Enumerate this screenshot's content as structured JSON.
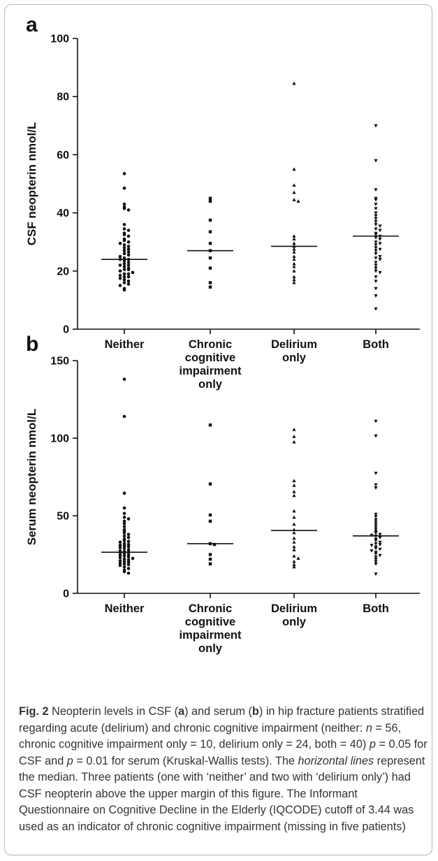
{
  "chart_data": [
    {
      "type": "scatter",
      "panel_label": "a",
      "ylabel": "CSF neopterin nmol/L",
      "ylim": [
        0,
        100
      ],
      "yticks": [
        "0",
        "20",
        "40",
        "60",
        "80",
        "100"
      ],
      "categories": [
        [
          "Neither"
        ],
        [
          "Chronic",
          "cognitive",
          "impairment",
          "only"
        ],
        [
          "Delirium",
          "only"
        ],
        [
          "Both"
        ]
      ],
      "groups": [
        {
          "marker": "circle",
          "median": 24,
          "values": [
            53.5,
            48.5,
            43,
            42,
            41.5,
            41,
            36,
            34.5,
            34,
            33,
            32.5,
            32,
            31,
            30.5,
            30,
            29.5,
            29,
            28.5,
            28,
            27.5,
            27,
            26.5,
            26,
            25.5,
            25,
            24.5,
            24,
            24,
            23.5,
            23,
            22.5,
            22,
            22,
            21.5,
            21,
            20.5,
            20.5,
            20,
            19.5,
            19,
            19,
            18.5,
            18,
            18,
            17.5,
            17,
            16.5,
            16,
            15.5,
            15,
            14,
            13.5
          ]
        },
        {
          "marker": "square",
          "median": 27,
          "values": [
            45,
            44,
            37.5,
            33.5,
            29.5,
            27,
            24.5,
            21,
            16,
            14.5
          ]
        },
        {
          "marker": "triangle-up",
          "median": 28.5,
          "values": [
            84.5,
            55,
            49.5,
            47,
            44.5,
            44,
            32,
            31,
            29.5,
            28.5,
            27.5,
            26.5,
            25,
            24,
            22.5,
            21.5,
            20,
            18,
            17,
            16
          ]
        },
        {
          "marker": "triangle-down",
          "median": 32,
          "values": [
            70,
            58,
            48,
            45,
            44.5,
            43,
            41.5,
            40,
            39,
            38,
            37,
            36,
            35.5,
            34.5,
            34,
            33,
            32.5,
            32,
            31.5,
            31,
            30,
            29.5,
            29,
            28,
            27.5,
            27,
            26,
            25,
            24.5,
            24,
            23,
            22,
            21,
            20,
            19.5,
            18,
            16.5,
            14,
            11.5,
            7
          ]
        }
      ]
    },
    {
      "type": "scatter",
      "panel_label": "b",
      "ylabel": "Serum neopterin nmol/L",
      "ylim": [
        0,
        150
      ],
      "yticks": [
        "0",
        "50",
        "100",
        "150"
      ],
      "categories": [
        [
          "Neither"
        ],
        [
          "Chronic",
          "cognitive",
          "impairment",
          "only"
        ],
        [
          "Delirium",
          "only"
        ],
        [
          "Both"
        ]
      ],
      "groups": [
        {
          "marker": "circle",
          "median": 26.5,
          "values": [
            138,
            114,
            64.5,
            55,
            51.5,
            49,
            48,
            46.5,
            45,
            43,
            41,
            40,
            39,
            38,
            37,
            36,
            35,
            34,
            33.5,
            33,
            32,
            31.5,
            31,
            30.5,
            30,
            29.5,
            29,
            28,
            27.5,
            27,
            26.5,
            26,
            25.5,
            25,
            24.5,
            24,
            23.5,
            23,
            22.5,
            22,
            21.5,
            21,
            20.5,
            20,
            19.5,
            19,
            18.5,
            18,
            17,
            16,
            15,
            14,
            13
          ]
        },
        {
          "marker": "square",
          "median": 32,
          "values": [
            108.5,
            70.5,
            50.5,
            46.5,
            32,
            31.5,
            25,
            22,
            19
          ]
        },
        {
          "marker": "triangle-up",
          "median": 40.5,
          "values": [
            105.5,
            101,
            97.5,
            72.5,
            69.5,
            65.5,
            63,
            53,
            49,
            44.5,
            41,
            39,
            35.5,
            33,
            30,
            28,
            24,
            22.5,
            20.5,
            18.5,
            17
          ]
        },
        {
          "marker": "triangle-down",
          "median": 37,
          "values": [
            111,
            101.5,
            77.5,
            70,
            68,
            51,
            49.5,
            47.5,
            46,
            44.5,
            43,
            41.5,
            40,
            39,
            38,
            37.5,
            37,
            36,
            35,
            34,
            33,
            32,
            31.5,
            31,
            30,
            29,
            28.5,
            27.5,
            26.5,
            25.5,
            24.5,
            23.5,
            22,
            20.5,
            19,
            12.5
          ]
        }
      ]
    }
  ],
  "caption": {
    "fig_label": "Fig. 2",
    "text_1": " Neopterin levels in CSF (",
    "letter_a": "a",
    "text_2": ") and serum (",
    "letter_b": "b",
    "text_3": ") in hip fracture patients stratified regarding acute (delirium) and chronic cognitive impairment (neither: ",
    "n_symbol": "n",
    "text_4": " = 56, chronic cognitive impairment only = 10, delirium only = 24, both = 40) ",
    "p_symbol_1": "p",
    "text_5": " = 0.05 for CSF and ",
    "p_symbol_2": "p",
    "text_6": " = 0.01 for serum (Kruskal-Wallis tests). The ",
    "italic_phrase": "horizontal lines",
    "text_7": " represent the median. Three patients (one with ‘neither’ and two with ‘delirium only’) had CSF neopterin above the upper margin of this figure. The Informant Questionnaire on Cognitive Decline in the Elderly (IQCODE) cutoff of 3.44 was used as an indicator of chronic cognitive impairment (missing in five patients)"
  }
}
